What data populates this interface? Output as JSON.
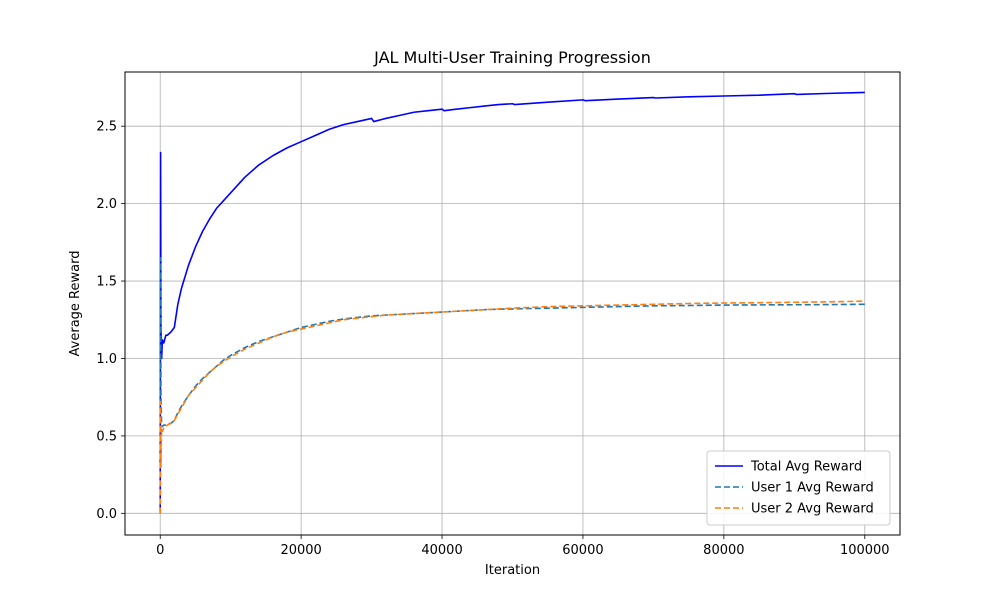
{
  "chart_data": {
    "type": "line",
    "title": "JAL Multi-User Training Progression",
    "xlabel": "Iteration",
    "ylabel": "Average Reward",
    "xlim": [
      -5000,
      105000
    ],
    "ylim": [
      -0.14,
      2.85
    ],
    "xticks": [
      0,
      20000,
      40000,
      60000,
      80000,
      100000
    ],
    "xtick_labels": [
      "0",
      "20000",
      "40000",
      "60000",
      "80000",
      "100000"
    ],
    "yticks": [
      0.0,
      0.5,
      1.0,
      1.5,
      2.0,
      2.5
    ],
    "ytick_labels": [
      "0.0",
      "0.5",
      "1.0",
      "1.5",
      "2.0",
      "2.5"
    ],
    "grid": true,
    "legend_position": "lower-right",
    "series": [
      {
        "name": "Total Avg Reward",
        "color": "#0000ff",
        "dash": "solid",
        "x": [
          0,
          50,
          100,
          200,
          300,
          500,
          800,
          1000,
          1500,
          2000,
          2500,
          3000,
          4000,
          5000,
          6000,
          7000,
          8000,
          9000,
          10000,
          12000,
          14000,
          16000,
          18000,
          20000,
          22000,
          24000,
          26000,
          28000,
          30000,
          30300,
          32000,
          34000,
          36000,
          38000,
          40000,
          40300,
          42000,
          44000,
          46000,
          48000,
          50000,
          50300,
          55000,
          60000,
          60300,
          65000,
          70000,
          70300,
          75000,
          80000,
          85000,
          90000,
          90300,
          95000,
          100000
        ],
        "y": [
          0.0,
          2.33,
          1.2,
          1.0,
          1.12,
          1.1,
          1.15,
          1.15,
          1.17,
          1.2,
          1.35,
          1.45,
          1.6,
          1.72,
          1.82,
          1.9,
          1.97,
          2.02,
          2.07,
          2.17,
          2.25,
          2.31,
          2.36,
          2.4,
          2.44,
          2.48,
          2.51,
          2.53,
          2.55,
          2.53,
          2.55,
          2.57,
          2.59,
          2.6,
          2.61,
          2.6,
          2.61,
          2.62,
          2.63,
          2.64,
          2.645,
          2.64,
          2.655,
          2.67,
          2.665,
          2.675,
          2.685,
          2.682,
          2.69,
          2.695,
          2.7,
          2.71,
          2.705,
          2.712,
          2.718
        ]
      },
      {
        "name": "User 1 Avg Reward",
        "color": "#1f77b4",
        "dash": "dashed",
        "x": [
          0,
          50,
          100,
          200,
          300,
          500,
          800,
          1000,
          1500,
          2000,
          2500,
          3000,
          4000,
          5000,
          6000,
          7000,
          8000,
          9000,
          10000,
          12000,
          14000,
          16000,
          18000,
          20000,
          22000,
          24000,
          26000,
          28000,
          30000,
          32000,
          34000,
          36000,
          38000,
          40000,
          42000,
          44000,
          46000,
          48000,
          50000,
          55000,
          60000,
          65000,
          70000,
          75000,
          80000,
          85000,
          90000,
          95000,
          100000
        ],
        "y": [
          0.0,
          1.65,
          0.75,
          0.58,
          0.56,
          0.57,
          0.57,
          0.58,
          0.58,
          0.6,
          0.65,
          0.69,
          0.76,
          0.82,
          0.87,
          0.91,
          0.95,
          0.99,
          1.02,
          1.07,
          1.11,
          1.14,
          1.17,
          1.2,
          1.22,
          1.24,
          1.255,
          1.265,
          1.275,
          1.28,
          1.285,
          1.29,
          1.295,
          1.3,
          1.305,
          1.31,
          1.315,
          1.318,
          1.32,
          1.325,
          1.33,
          1.335,
          1.34,
          1.342,
          1.345,
          1.346,
          1.347,
          1.348,
          1.35
        ]
      },
      {
        "name": "User 2 Avg Reward",
        "color": "#ff7f0e",
        "dash": "dashed",
        "x": [
          0,
          50,
          100,
          200,
          300,
          500,
          800,
          1000,
          1500,
          2000,
          2500,
          3000,
          4000,
          5000,
          6000,
          7000,
          8000,
          9000,
          10000,
          12000,
          14000,
          16000,
          18000,
          20000,
          22000,
          24000,
          26000,
          28000,
          30000,
          32000,
          34000,
          36000,
          38000,
          40000,
          42000,
          44000,
          46000,
          48000,
          50000,
          55000,
          60000,
          65000,
          70000,
          75000,
          80000,
          85000,
          90000,
          95000,
          100000
        ],
        "y": [
          0.0,
          0.72,
          0.3,
          0.55,
          0.53,
          0.55,
          0.56,
          0.57,
          0.58,
          0.6,
          0.64,
          0.68,
          0.76,
          0.81,
          0.86,
          0.91,
          0.95,
          0.98,
          1.01,
          1.06,
          1.1,
          1.14,
          1.17,
          1.19,
          1.21,
          1.23,
          1.25,
          1.26,
          1.27,
          1.28,
          1.285,
          1.29,
          1.295,
          1.3,
          1.305,
          1.31,
          1.315,
          1.32,
          1.325,
          1.335,
          1.34,
          1.345,
          1.35,
          1.355,
          1.358,
          1.36,
          1.363,
          1.366,
          1.37
        ]
      }
    ]
  }
}
